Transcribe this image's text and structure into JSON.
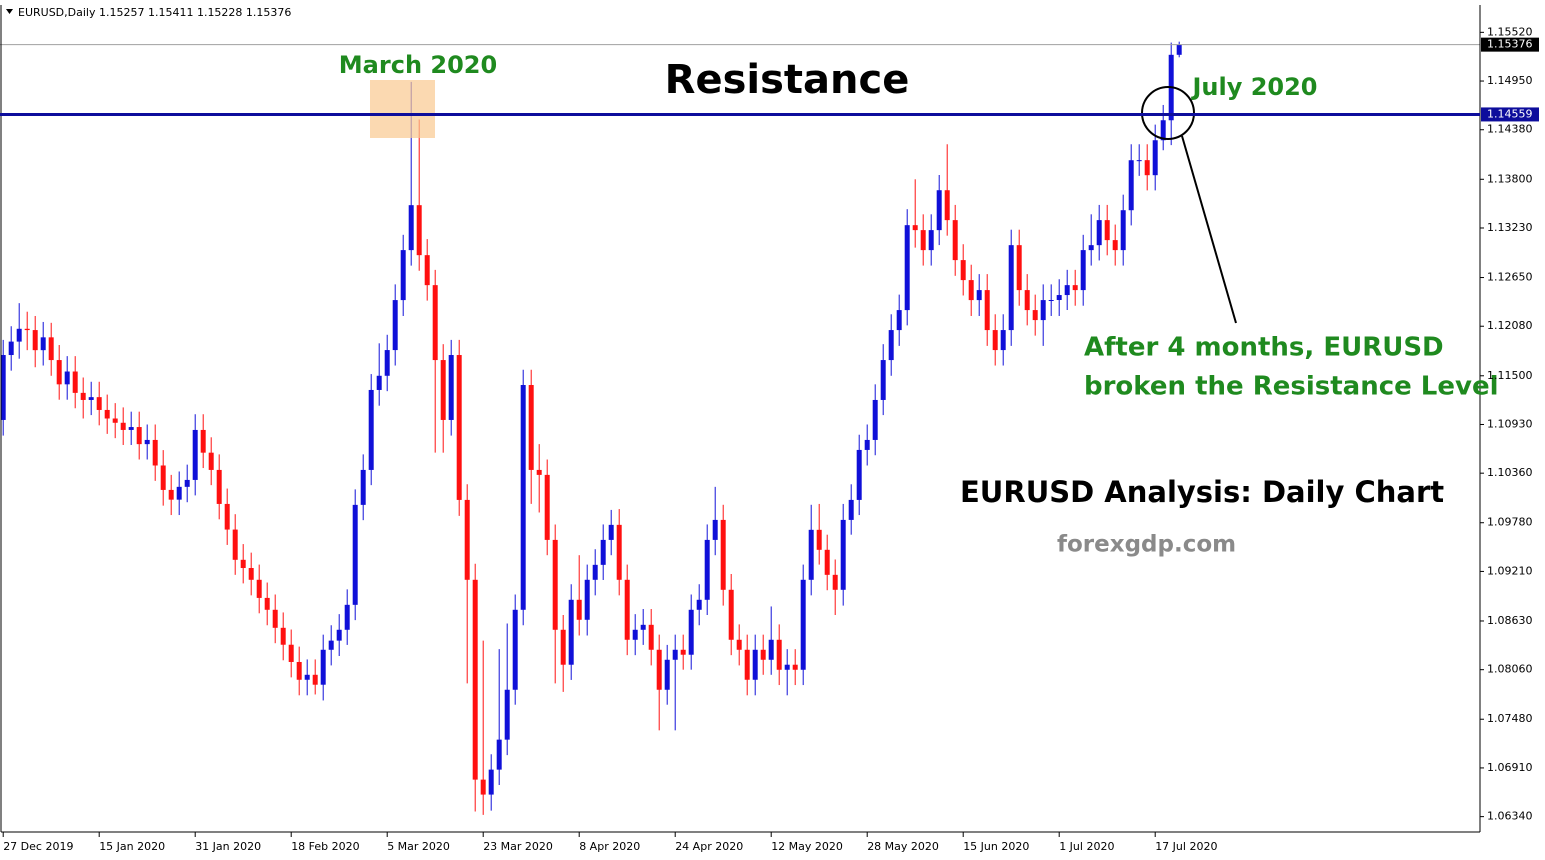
{
  "chart_data": {
    "type": "candlestick",
    "title": "EURUSD,Daily  1.15257 1.15411 1.15228 1.15376",
    "up_color": "#1010d8",
    "down_color": "#ff1010",
    "resistance_color": "#0d0d9c",
    "ylim": [
      1.0616,
      1.1584
    ],
    "xlim": [
      -0.4,
      184.6
    ],
    "yticks": [
      {
        "value": 1.1552,
        "label": "1.15520"
      },
      {
        "value": 1.1495,
        "label": "1.14950"
      },
      {
        "value": 1.1438,
        "label": "1.14380"
      },
      {
        "value": 1.138,
        "label": "1.13800"
      },
      {
        "value": 1.1323,
        "label": "1.13230"
      },
      {
        "value": 1.1265,
        "label": "1.12650"
      },
      {
        "value": 1.1208,
        "label": "1.12080"
      },
      {
        "value": 1.115,
        "label": "1.11500"
      },
      {
        "value": 1.1093,
        "label": "1.10930"
      },
      {
        "value": 1.1036,
        "label": "1.10360"
      },
      {
        "value": 1.0978,
        "label": "1.09780"
      },
      {
        "value": 1.0921,
        "label": "1.09210"
      },
      {
        "value": 1.0863,
        "label": "1.08630"
      },
      {
        "value": 1.0806,
        "label": "1.08060"
      },
      {
        "value": 1.0748,
        "label": "1.07480"
      },
      {
        "value": 1.0691,
        "label": "1.06910"
      },
      {
        "value": 1.0634,
        "label": "1.06340"
      }
    ],
    "xticks": [
      {
        "value": 0,
        "label": "27 Dec 2019"
      },
      {
        "value": 12,
        "label": "15 Jan 2020"
      },
      {
        "value": 24,
        "label": "31 Jan 2020"
      },
      {
        "value": 36,
        "label": "18 Feb 2020"
      },
      {
        "value": 48,
        "label": "5 Mar 2020"
      },
      {
        "value": 60,
        "label": "23 Mar 2020"
      },
      {
        "value": 72,
        "label": "8 Apr 2020"
      },
      {
        "value": 84,
        "label": "24 Apr 2020"
      },
      {
        "value": 96,
        "label": "12 May 2020"
      },
      {
        "value": 108,
        "label": "28 May 2020"
      },
      {
        "value": 120,
        "label": "15 Jun 2020"
      },
      {
        "value": 132,
        "label": "1 Jul 2020"
      },
      {
        "value": 144,
        "label": "17 Jul 2020"
      }
    ],
    "current_price": 1.15376,
    "resistance_level": 1.14559,
    "annotations": [
      "March 2020",
      "Resistance",
      "July 2020",
      "After 4 months, EURUSD",
      "broken the Resistance Level",
      "EURUSD Analysis: Daily Chart",
      "forexgdp.com"
    ],
    "ohlc": [
      [
        1.10983,
        1.1192,
        1.108,
        1.11743
      ],
      [
        1.11743,
        1.1208,
        1.1156,
        1.119
      ],
      [
        1.119,
        1.1235,
        1.117,
        1.1205
      ],
      [
        1.1205,
        1.1225,
        1.118,
        1.12035
      ],
      [
        1.12035,
        1.122,
        1.116,
        1.118
      ],
      [
        1.118,
        1.1213,
        1.1162,
        1.1195
      ],
      [
        1.1195,
        1.1212,
        1.115,
        1.11684
      ],
      [
        1.11684,
        1.1186,
        1.1122,
        1.114
      ],
      [
        1.114,
        1.1173,
        1.1122,
        1.1155
      ],
      [
        1.1155,
        1.1173,
        1.1112,
        1.113
      ],
      [
        1.113,
        1.1148,
        1.11,
        1.11217
      ],
      [
        1.11217,
        1.1143,
        1.1104,
        1.1125
      ],
      [
        1.1125,
        1.1143,
        1.1092,
        1.111
      ],
      [
        1.111,
        1.1128,
        1.1082,
        1.11
      ],
      [
        1.11,
        1.1118,
        1.1077,
        1.1095
      ],
      [
        1.1095,
        1.1113,
        1.1069,
        1.10866
      ],
      [
        1.10866,
        1.1108,
        1.1069,
        1.109
      ],
      [
        1.109,
        1.1108,
        1.1052,
        1.107
      ],
      [
        1.107,
        1.1093,
        1.1052,
        1.10749
      ],
      [
        1.10749,
        1.1093,
        1.1027,
        1.1045
      ],
      [
        1.1045,
        1.1063,
        1.0998,
        1.10164
      ],
      [
        1.10164,
        1.1034,
        1.0987,
        1.1005
      ],
      [
        1.1005,
        1.1038,
        1.0987,
        1.102
      ],
      [
        1.102,
        1.1046,
        1.1002,
        1.10281
      ],
      [
        1.10281,
        1.1105,
        1.101,
        1.10866
      ],
      [
        1.10866,
        1.1105,
        1.1042,
        1.106
      ],
      [
        1.106,
        1.1078,
        1.1022,
        1.10398
      ],
      [
        1.10398,
        1.1058,
        1.0982,
        1.1
      ],
      [
        1.1,
        1.1018,
        1.0952,
        1.097
      ],
      [
        1.097,
        1.0988,
        1.0917,
        1.09346
      ],
      [
        1.09346,
        1.0953,
        1.0907,
        1.0925
      ],
      [
        1.0925,
        1.0943,
        1.0893,
        1.09112
      ],
      [
        1.09112,
        1.0929,
        1.0872,
        1.089
      ],
      [
        1.089,
        1.0908,
        1.0858,
        1.08761
      ],
      [
        1.08761,
        1.0894,
        1.0837,
        1.0855
      ],
      [
        1.0855,
        1.0873,
        1.0817,
        1.08352
      ],
      [
        1.08352,
        1.0853,
        1.0797,
        1.0815
      ],
      [
        1.0815,
        1.0833,
        1.0776,
        1.07942
      ],
      [
        1.07942,
        1.0818,
        1.0776,
        1.08
      ],
      [
        1.08,
        1.0818,
        1.0777,
        1.07884
      ],
      [
        1.07884,
        1.0847,
        1.077,
        1.08293
      ],
      [
        1.08293,
        1.0858,
        1.0811,
        1.084
      ],
      [
        1.084,
        1.0871,
        1.0822,
        1.08527
      ],
      [
        1.08527,
        1.09,
        1.0835,
        1.08819
      ],
      [
        1.08819,
        1.1017,
        1.0864,
        1.09989
      ],
      [
        1.09989,
        1.1058,
        1.0981,
        1.10398
      ],
      [
        1.10398,
        1.1152,
        1.1022,
        1.11334
      ],
      [
        1.11334,
        1.1188,
        1.1115,
        1.115
      ],
      [
        1.115,
        1.1198,
        1.1132,
        1.11801
      ],
      [
        1.11801,
        1.1257,
        1.1162,
        1.12386
      ],
      [
        1.12386,
        1.1315,
        1.122,
        1.12971
      ],
      [
        1.12971,
        1.1494,
        1.1279,
        1.13497
      ],
      [
        1.13497,
        1.145,
        1.1273,
        1.12912
      ],
      [
        1.12912,
        1.131,
        1.1238,
        1.12561
      ],
      [
        1.12561,
        1.1274,
        1.106,
        1.11684
      ],
      [
        1.11684,
        1.1187,
        1.106,
        1.10983
      ],
      [
        1.10983,
        1.1192,
        1.108,
        1.11743
      ],
      [
        1.11743,
        1.1192,
        1.0986,
        1.10047
      ],
      [
        1.10047,
        1.1023,
        1.079,
        1.09112
      ],
      [
        1.09112,
        1.093,
        1.064,
        1.06773
      ],
      [
        1.06773,
        1.084,
        1.0636,
        1.06598
      ],
      [
        1.06598,
        1.0707,
        1.0641,
        1.0689
      ],
      [
        1.0689,
        1.083,
        1.0671,
        1.07241
      ],
      [
        1.07241,
        1.086,
        1.0706,
        1.07825
      ],
      [
        1.07825,
        1.0894,
        1.0765,
        1.08761
      ],
      [
        1.08761,
        1.1157,
        1.0858,
        1.11392
      ],
      [
        1.11392,
        1.1157,
        1.1,
        1.10398
      ],
      [
        1.10398,
        1.107,
        1.099,
        1.1034
      ],
      [
        1.1034,
        1.1052,
        1.094,
        1.09579
      ],
      [
        1.09579,
        1.0976,
        1.079,
        1.08527
      ],
      [
        1.08527,
        1.087,
        1.078,
        1.08118
      ],
      [
        1.08118,
        1.0906,
        1.0794,
        1.08878
      ],
      [
        1.08878,
        1.094,
        1.0846,
        1.08644
      ],
      [
        1.08644,
        1.0929,
        1.0846,
        1.09112
      ],
      [
        1.09112,
        1.0947,
        1.0893,
        1.09287
      ],
      [
        1.09287,
        1.0976,
        1.0911,
        1.09579
      ],
      [
        1.09579,
        1.0993,
        1.094,
        1.09755
      ],
      [
        1.09755,
        1.0994,
        1.0893,
        1.09112
      ],
      [
        1.09112,
        1.0929,
        1.0823,
        1.0841
      ],
      [
        1.0841,
        1.0871,
        1.0823,
        1.08527
      ],
      [
        1.08527,
        1.0877,
        1.0835,
        1.08585
      ],
      [
        1.08585,
        1.0877,
        1.0811,
        1.08293
      ],
      [
        1.08293,
        1.0847,
        1.0735,
        1.07825
      ],
      [
        1.07825,
        1.0835,
        1.0765,
        1.08176
      ],
      [
        1.08176,
        1.0847,
        1.0735,
        1.08293
      ],
      [
        1.08293,
        1.0847,
        1.0806,
        1.08235
      ],
      [
        1.08235,
        1.0894,
        1.0806,
        1.08761
      ],
      [
        1.08761,
        1.0906,
        1.0858,
        1.08878
      ],
      [
        1.08878,
        1.0976,
        1.087,
        1.09579
      ],
      [
        1.09579,
        1.102,
        1.094,
        1.09813
      ],
      [
        1.09813,
        1.0999,
        1.0881,
        1.08995
      ],
      [
        1.08995,
        1.0918,
        1.0823,
        1.0841
      ],
      [
        1.0841,
        1.0859,
        1.0811,
        1.08293
      ],
      [
        1.08293,
        1.0847,
        1.0776,
        1.07942
      ],
      [
        1.07942,
        1.0847,
        1.0776,
        1.08293
      ],
      [
        1.08293,
        1.0847,
        1.08,
        1.08176
      ],
      [
        1.08176,
        1.088,
        1.08,
        1.0841
      ],
      [
        1.0841,
        1.0859,
        1.0788,
        1.08059
      ],
      [
        1.08059,
        1.083,
        1.0776,
        1.08118
      ],
      [
        1.08118,
        1.083,
        1.0788,
        1.08059
      ],
      [
        1.08059,
        1.0929,
        1.0788,
        1.09112
      ],
      [
        1.09112,
        1.0999,
        1.0893,
        1.09697
      ],
      [
        1.09697,
        1.1,
        1.0929,
        1.09463
      ],
      [
        1.09463,
        1.0964,
        1.0899,
        1.0917
      ],
      [
        1.0917,
        1.0935,
        1.087,
        1.08995
      ],
      [
        1.08995,
        1.1,
        1.0881,
        1.09813
      ],
      [
        1.09813,
        1.1023,
        1.0964,
        1.10047
      ],
      [
        1.10047,
        1.1081,
        1.0987,
        1.10632
      ],
      [
        1.10632,
        1.1093,
        1.1045,
        1.10749
      ],
      [
        1.10749,
        1.114,
        1.1057,
        1.11217
      ],
      [
        1.11217,
        1.1187,
        1.1104,
        1.11684
      ],
      [
        1.11684,
        1.1222,
        1.115,
        1.12035
      ],
      [
        1.12035,
        1.1245,
        1.1185,
        1.12269
      ],
      [
        1.12269,
        1.1345,
        1.1209,
        1.13263
      ],
      [
        1.13263,
        1.138,
        1.13,
        1.13205
      ],
      [
        1.13205,
        1.1339,
        1.1279,
        1.12971
      ],
      [
        1.12971,
        1.1339,
        1.1279,
        1.13205
      ],
      [
        1.13205,
        1.1385,
        1.1303,
        1.13672
      ],
      [
        1.13672,
        1.1421,
        1.1314,
        1.13322
      ],
      [
        1.13322,
        1.135,
        1.1267,
        1.12854
      ],
      [
        1.12854,
        1.1304,
        1.1244,
        1.1262
      ],
      [
        1.1262,
        1.128,
        1.122,
        1.12386
      ],
      [
        1.12386,
        1.1269,
        1.122,
        1.12503
      ],
      [
        1.12503,
        1.1269,
        1.1185,
        1.12035
      ],
      [
        1.12035,
        1.1222,
        1.1162,
        1.11801
      ],
      [
        1.11801,
        1.1222,
        1.1162,
        1.12035
      ],
      [
        1.12035,
        1.1321,
        1.1185,
        1.13029
      ],
      [
        1.13029,
        1.1321,
        1.1232,
        1.12503
      ],
      [
        1.12503,
        1.1269,
        1.1209,
        1.12269
      ],
      [
        1.12269,
        1.1245,
        1.1197,
        1.12152
      ],
      [
        1.12152,
        1.1257,
        1.1185,
        1.12386
      ],
      [
        1.12386,
        1.1257,
        1.122,
        1.12387
      ],
      [
        1.12387,
        1.1263,
        1.122,
        1.12445
      ],
      [
        1.12445,
        1.1274,
        1.1227,
        1.12561
      ],
      [
        1.12561,
        1.1274,
        1.1232,
        1.12503
      ],
      [
        1.12503,
        1.1315,
        1.1232,
        1.12971
      ],
      [
        1.12971,
        1.1339,
        1.1279,
        1.13029
      ],
      [
        1.13029,
        1.135,
        1.1285,
        1.13322
      ],
      [
        1.13322,
        1.135,
        1.1291,
        1.13088
      ],
      [
        1.13088,
        1.1327,
        1.1279,
        1.12971
      ],
      [
        1.12971,
        1.1362,
        1.1279,
        1.13438
      ],
      [
        1.13438,
        1.1421,
        1.1326,
        1.14023
      ],
      [
        1.14023,
        1.1421,
        1.1384,
        1.14024
      ],
      [
        1.14024,
        1.1421,
        1.1367,
        1.13848
      ],
      [
        1.13848,
        1.1444,
        1.1367,
        1.14257
      ],
      [
        1.14257,
        1.1467,
        1.1414,
        1.14491
      ],
      [
        1.14491,
        1.154,
        1.142,
        1.15257
      ],
      [
        1.15257,
        1.15411,
        1.15228,
        1.15376
      ]
    ]
  }
}
